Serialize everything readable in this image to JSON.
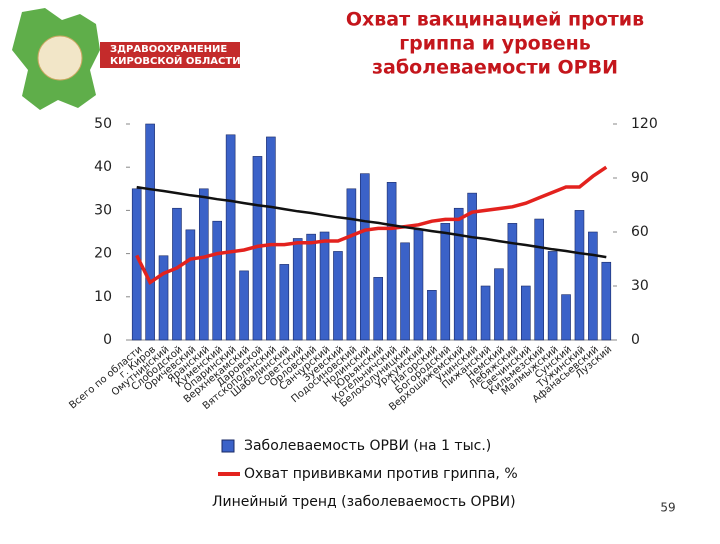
{
  "logo": {
    "line1": "ЗДРАВООХРАНЕНИЕ",
    "line2": "КИРОВСКОЙ ОБЛАСТИ"
  },
  "page_number": "59",
  "chart_data": {
    "type": "bar",
    "title": [
      "Охват  вакцинацией против",
      "гриппа и уровень",
      "заболеваемости ОРВИ"
    ],
    "categories": [
      "Всего по области",
      "г. Киров",
      "Омутнинский",
      "Слободской",
      "Оричевский",
      "Яранский",
      "Куменский",
      "Опаринский",
      "Верхнекамский",
      "Даровской",
      "Вятскополянский",
      "Шабалинский",
      "Советский",
      "Орловский",
      "Санчурский",
      "Зуевский",
      "Подосиновский",
      "Нолинский",
      "Юрьянский",
      "Котельничский",
      "Белохолуницкий",
      "Уржумский",
      "Нагорский",
      "Богородский",
      "Верхошижемский",
      "Унинский",
      "Пижанский",
      "Немский",
      "Лебяжский",
      "Свечинский",
      "Кильмезский",
      "Малмыжский",
      "Сунский",
      "Тужинский",
      "Афанасьевский",
      "Лузский"
    ],
    "series": [
      {
        "name": "Заболеваемость ОРВИ (на 1 тыс.)",
        "type": "bar",
        "color": "#3b62c8",
        "values": [
          35,
          50,
          19.5,
          30.5,
          25.5,
          35,
          27.5,
          47.5,
          16,
          42.5,
          47,
          17.5,
          23.5,
          24.5,
          25,
          20.5,
          35,
          38.5,
          14.5,
          36.5,
          22.5,
          25.5,
          11.5,
          27,
          30.5,
          34,
          12.5,
          16.5,
          27,
          12.5,
          28,
          20.5,
          10.5,
          30,
          25,
          18
        ]
      },
      {
        "name": "Охват прививками против гриппа, %",
        "type": "line",
        "axis": "y2",
        "color": "#e3221e",
        "values": [
          47,
          32,
          37,
          40,
          45,
          46,
          48,
          49,
          50,
          52,
          53,
          53,
          54,
          54,
          55,
          55,
          58,
          61,
          62,
          62,
          63,
          64,
          66,
          67,
          67,
          71,
          72,
          73,
          74,
          76,
          79,
          82,
          85,
          85,
          91,
          96
        ]
      },
      {
        "name": "Линейный тренд (заболеваемость ОРВИ)",
        "type": "trend",
        "color": "#111111",
        "values": [
          35.4,
          34.9,
          34.5,
          34.0,
          33.5,
          33.1,
          32.6,
          32.2,
          31.7,
          31.2,
          30.8,
          30.3,
          29.8,
          29.4,
          28.9,
          28.4,
          28.0,
          27.5,
          27.1,
          26.6,
          26.1,
          25.7,
          25.2,
          24.8,
          24.3,
          23.8,
          23.4,
          22.9,
          22.4,
          22.0,
          21.5,
          21.0,
          20.6,
          20.1,
          19.7,
          19.2
        ]
      }
    ],
    "ylim": [
      0,
      50
    ],
    "yticks": [
      0,
      10,
      20,
      30,
      40,
      50
    ],
    "y2lim": [
      0,
      120
    ],
    "y2ticks": [
      0,
      30,
      60,
      90,
      120
    ]
  }
}
